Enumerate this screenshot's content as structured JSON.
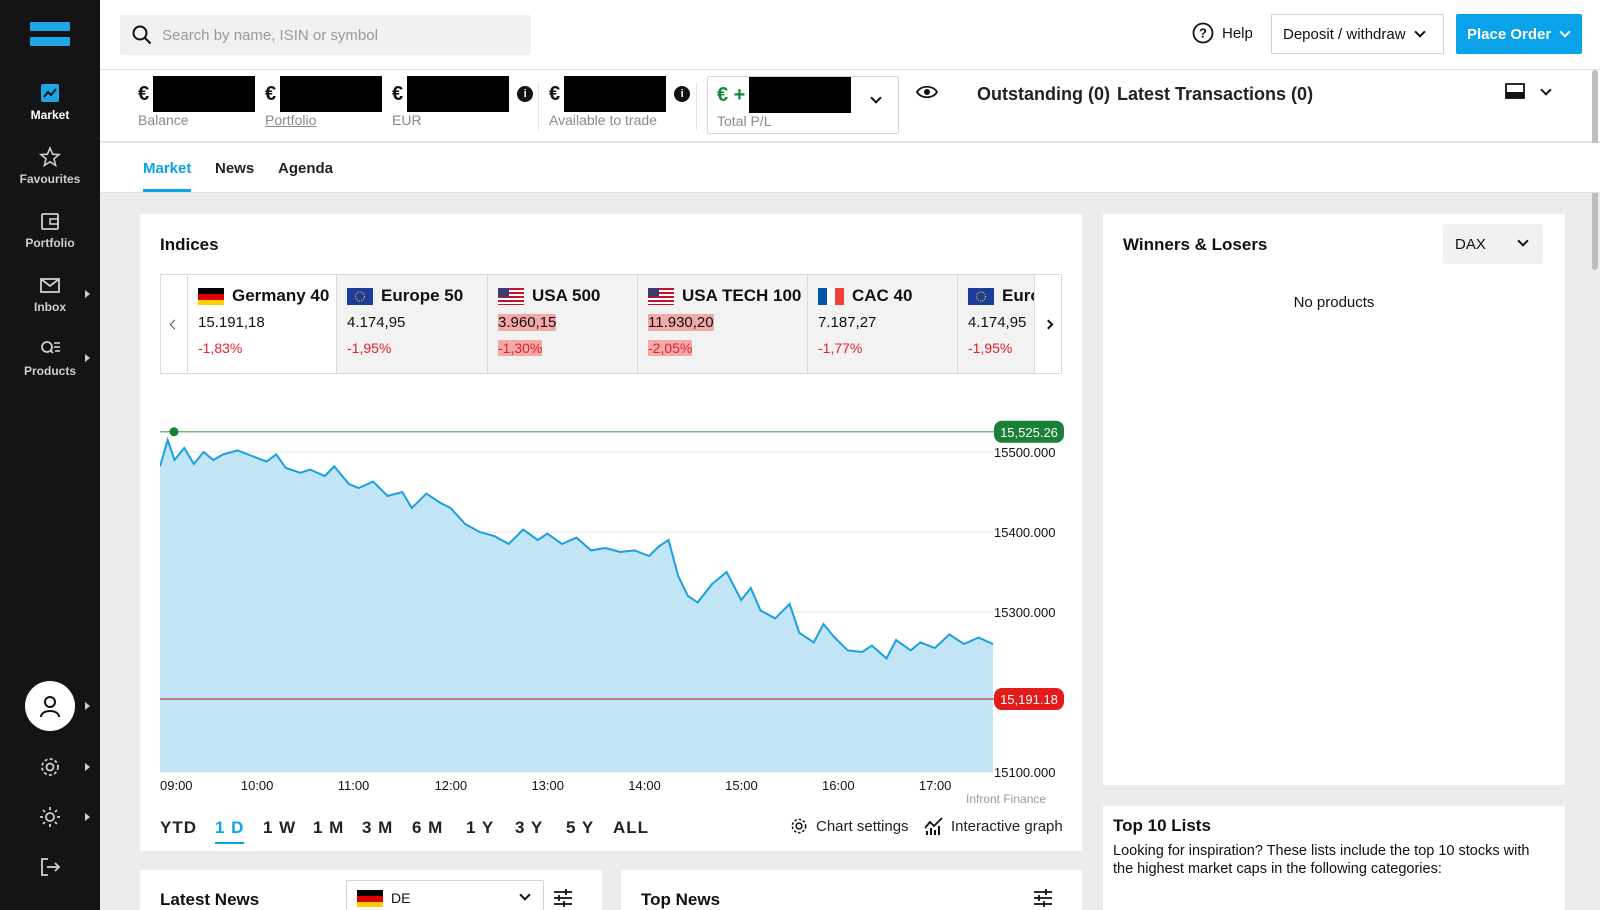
{
  "sidebar": {
    "items": [
      {
        "label": "Market",
        "icon": "market-chart-icon"
      },
      {
        "label": "Favourites",
        "icon": "star-icon"
      },
      {
        "label": "Portfolio",
        "icon": "wallet-icon"
      },
      {
        "label": "Inbox",
        "icon": "envelope-icon"
      },
      {
        "label": "Products",
        "icon": "search-list-icon"
      }
    ]
  },
  "header": {
    "search_placeholder": "Search by name, ISIN or symbol",
    "help_label": "Help",
    "deposit_label": "Deposit / withdraw",
    "place_order_label": "Place Order"
  },
  "account": {
    "currency": "€",
    "balance_label": "Balance",
    "portfolio_label": "Portfolio",
    "eur_label": "EUR",
    "available_label": "Available to trade",
    "pl_prefix": "€ +",
    "pl_label": "Total P/L",
    "outstanding_label": "Outstanding (0)",
    "latest_transactions_label": "Latest Transactions (0)"
  },
  "tabs": [
    "Market",
    "News",
    "Agenda"
  ],
  "indices_card": {
    "title": "Indices",
    "items": [
      {
        "name": "Germany 40",
        "flag": "de",
        "price": "15.191,18",
        "change": "-1,83%",
        "highlight": false
      },
      {
        "name": "Europe 50",
        "flag": "eu",
        "price": "4.174,95",
        "change": "-1,95%",
        "highlight": false
      },
      {
        "name": "USA 500",
        "flag": "us",
        "price": "3.960,15",
        "change": "-1,30%",
        "highlight": true
      },
      {
        "name": "USA TECH 100",
        "flag": "us",
        "price": "11.930,20",
        "change": "-2,05%",
        "highlight": true
      },
      {
        "name": "CAC 40",
        "flag": "fr",
        "price": "7.187,27",
        "change": "-1,77%",
        "highlight": false
      },
      {
        "name": "Euro",
        "flag": "eu",
        "price": "4.174,95",
        "change": "-1,95%",
        "highlight": false
      }
    ]
  },
  "chart_data": {
    "type": "area",
    "title": "",
    "x_ticks": [
      "09:00",
      "10:00",
      "11:00",
      "12:00",
      "13:00",
      "14:00",
      "15:00",
      "16:00",
      "17:00"
    ],
    "y_ticks": [
      "15500.000",
      "15400.000",
      "15300.000",
      "15100.000"
    ],
    "ylim": [
      15100,
      15540
    ],
    "xlim": [
      9.0,
      17.6
    ],
    "reference_high": {
      "value": 15525.26,
      "label": "15,525.26",
      "color": "#1a7f37"
    },
    "reference_current": {
      "value": 15191.18,
      "label": "15,191.18",
      "color": "#e31b1b"
    },
    "series": [
      {
        "color": "#1a9fe0",
        "fill": "#c2e5f6",
        "x": [
          9.0,
          9.08,
          9.15,
          9.25,
          9.35,
          9.45,
          9.55,
          9.65,
          9.8,
          9.95,
          10.1,
          10.2,
          10.3,
          10.45,
          10.55,
          10.7,
          10.8,
          10.95,
          11.05,
          11.2,
          11.35,
          11.5,
          11.6,
          11.75,
          11.9,
          12.0,
          12.15,
          12.3,
          12.45,
          12.6,
          12.75,
          12.9,
          13.0,
          13.15,
          13.3,
          13.45,
          13.6,
          13.75,
          13.9,
          14.05,
          14.15,
          14.25,
          14.35,
          14.45,
          14.55,
          14.7,
          14.85,
          15.0,
          15.1,
          15.2,
          15.35,
          15.5,
          15.6,
          15.75,
          15.85,
          15.95,
          16.1,
          16.25,
          16.35,
          16.5,
          16.6,
          16.75,
          16.85,
          17.0,
          17.15,
          17.3,
          17.45,
          17.6
        ],
        "y": [
          15482,
          15515,
          15490,
          15505,
          15485,
          15500,
          15490,
          15497,
          15502,
          15495,
          15488,
          15497,
          15480,
          15474,
          15478,
          15470,
          15482,
          15460,
          15455,
          15463,
          15445,
          15450,
          15430,
          15448,
          15436,
          15430,
          15410,
          15400,
          15395,
          15385,
          15403,
          15390,
          15398,
          15385,
          15393,
          15377,
          15380,
          15375,
          15377,
          15370,
          15382,
          15390,
          15345,
          15320,
          15312,
          15335,
          15350,
          15315,
          15330,
          15302,
          15292,
          15310,
          15274,
          15262,
          15285,
          15270,
          15252,
          15250,
          15258,
          15242,
          15265,
          15252,
          15262,
          15255,
          15272,
          15260,
          15268,
          15260
        ]
      }
    ],
    "source": "Infront Finance",
    "ranges": [
      "YTD",
      "1 D",
      "1 W",
      "1 M",
      "3 M",
      "6 M",
      "1 Y",
      "3 Y",
      "5 Y",
      "ALL"
    ],
    "active_range": "1 D",
    "chart_settings_label": "Chart settings",
    "interactive_graph_label": "Interactive graph"
  },
  "winners_losers": {
    "title": "Winners & Losers",
    "select_value": "DAX",
    "empty_text": "No products"
  },
  "top10": {
    "title": "Top 10 Lists",
    "description": "Looking for inspiration? These lists include the top 10 stocks with the highest market caps in the following categories:"
  },
  "latest_news": {
    "title": "Latest News",
    "region": "DE"
  },
  "top_news": {
    "title": "Top News"
  }
}
